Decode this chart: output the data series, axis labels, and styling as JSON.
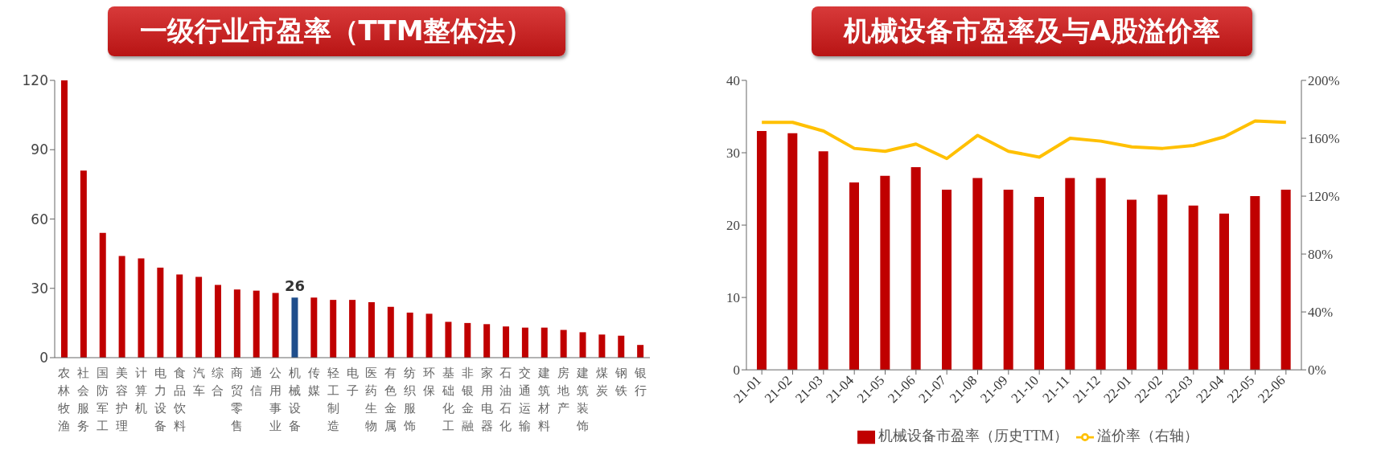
{
  "chart_data": [
    {
      "type": "bar",
      "title": "一级行业市盈率（TTM整体法）",
      "categories": [
        "农林牧渔",
        "社会服务",
        "国防军工",
        "美容护理",
        "计算机",
        "电力设备",
        "食品饮料",
        "汽车",
        "综合",
        "商贸零售",
        "通信",
        "公用事业",
        "机械设备",
        "传媒",
        "轻工制造",
        "电子",
        "医药生物",
        "有色金属",
        "纺织服饰",
        "环保",
        "基础化工",
        "非银金融",
        "家用电器",
        "石油石化",
        "交通运输",
        "建筑材料",
        "房地产",
        "建筑装饰",
        "煤炭",
        "钢铁",
        "银行"
      ],
      "series": [
        {
          "colors": [
            "#c00000",
            "#c00000",
            "#c00000",
            "#c00000",
            "#c00000",
            "#c00000",
            "#c00000",
            "#c00000",
            "#c00000",
            "#c00000",
            "#c00000",
            "#c00000",
            "#1f4e8c",
            "#c00000",
            "#c00000",
            "#c00000",
            "#c00000",
            "#c00000",
            "#c00000",
            "#c00000",
            "#c00000",
            "#c00000",
            "#c00000",
            "#c00000",
            "#c00000",
            "#c00000",
            "#c00000",
            "#c00000",
            "#c00000",
            "#c00000",
            "#c00000"
          ],
          "values": [
            120,
            81,
            54,
            44,
            43,
            39,
            36,
            35,
            31.5,
            29.5,
            29,
            28,
            26,
            26,
            25,
            25,
            24,
            22,
            19.5,
            19,
            15.5,
            15,
            14.5,
            13.5,
            13,
            13,
            12,
            11,
            10,
            9.5,
            5.5
          ],
          "value_labels": [
            null,
            null,
            null,
            null,
            null,
            null,
            null,
            null,
            null,
            null,
            null,
            null,
            "26",
            null,
            null,
            null,
            null,
            null,
            null,
            null,
            null,
            null,
            null,
            null,
            null,
            null,
            null,
            null,
            null,
            null,
            null
          ]
        }
      ],
      "ylim": [
        0,
        120
      ],
      "yticks": [
        0,
        30,
        60,
        90,
        120
      ],
      "grid": false,
      "legend": false
    },
    {
      "type": "bar",
      "title": "机械设备市盈率及与A股溢价率",
      "categories": [
        "21-01",
        "21-02",
        "21-03",
        "21-04",
        "21-05",
        "21-06",
        "21-07",
        "21-08",
        "21-09",
        "21-10",
        "21-11",
        "21-12",
        "22-01",
        "22-02",
        "22-03",
        "22-04",
        "22-05",
        "22-06"
      ],
      "series": [
        {
          "name": "机械设备市盈率（历史TTM）",
          "color": "#c00000",
          "values": [
            33,
            32.7,
            30.2,
            25.9,
            26.8,
            28,
            24.9,
            26.5,
            24.9,
            23.9,
            26.5,
            26.5,
            23.5,
            24.2,
            22.7,
            21.6,
            24,
            24.9
          ]
        },
        {
          "type": "line",
          "axis": "y2",
          "name": "溢价率（右轴）",
          "color": "#ffc000",
          "values": [
            171,
            171,
            165,
            153,
            151,
            156,
            146,
            162,
            151,
            147,
            160,
            158,
            154,
            153,
            155,
            161,
            172,
            171
          ]
        }
      ],
      "ylim": [
        0,
        40
      ],
      "yticks": [
        0,
        10,
        20,
        30,
        40
      ],
      "y2lim": [
        0,
        200
      ],
      "y2ticks": [
        {
          "value": 0,
          "label": "0%"
        },
        {
          "value": 40,
          "label": "40%"
        },
        {
          "value": 80,
          "label": "80%"
        },
        {
          "value": 120,
          "label": "120%"
        },
        {
          "value": 160,
          "label": "160%"
        },
        {
          "value": 200,
          "label": "200%"
        }
      ],
      "grid": false,
      "legend": "bottom",
      "marker": "none"
    }
  ]
}
